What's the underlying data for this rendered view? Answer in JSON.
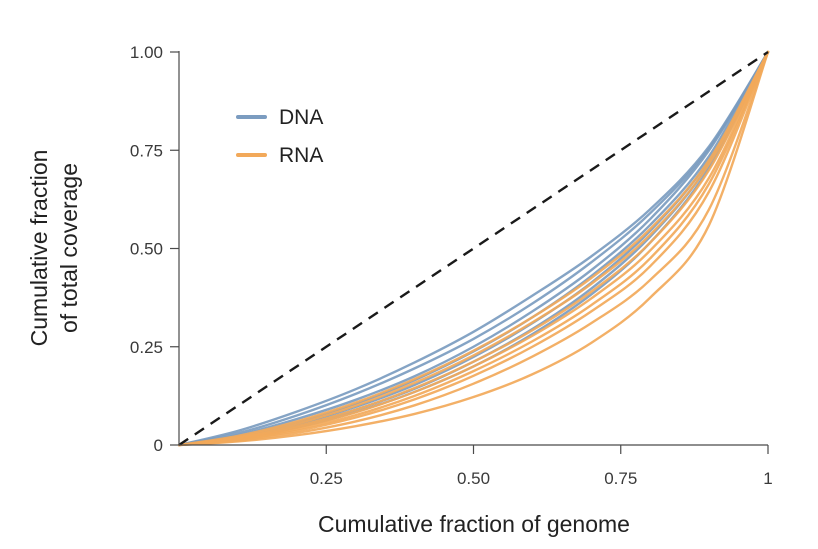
{
  "chart_data": {
    "type": "line",
    "title": "",
    "xlabel": "Cumulative fraction of genome",
    "ylabel": [
      "Cumulative fraction",
      "of total coverage"
    ],
    "xlim": [
      0,
      1
    ],
    "ylim": [
      0,
      1
    ],
    "x_ticks": [
      {
        "value": 0.25,
        "label": "0.25"
      },
      {
        "value": 0.5,
        "label": "0.50"
      },
      {
        "value": 0.75,
        "label": "0.75"
      },
      {
        "value": 1.0,
        "label": "1"
      }
    ],
    "y_ticks": [
      {
        "value": 0,
        "label": "0"
      },
      {
        "value": 0.25,
        "label": "0.25"
      },
      {
        "value": 0.5,
        "label": "0.50"
      },
      {
        "value": 0.75,
        "label": "0.75"
      },
      {
        "value": 1.0,
        "label": "1.00"
      }
    ],
    "grid": false,
    "legend_position": "top-left",
    "legend": [
      {
        "label": "DNA",
        "color": "#7b9cc0"
      },
      {
        "label": "RNA",
        "color": "#f2a95a"
      }
    ],
    "reference_line": {
      "x": [
        0,
        1
      ],
      "y": [
        0,
        1
      ],
      "style": "dashed",
      "color": "#1a1a1a"
    },
    "x": [
      0,
      0.1,
      0.2,
      0.3,
      0.4,
      0.5,
      0.6,
      0.7,
      0.8,
      0.9,
      1.0
    ],
    "series": [
      {
        "group": "DNA",
        "color": "#7b9cc0",
        "y": [
          0,
          0.036,
          0.085,
          0.142,
          0.21,
          0.288,
          0.38,
          0.48,
          0.6,
          0.76,
          1.0
        ]
      },
      {
        "group": "DNA",
        "color": "#7b9cc0",
        "y": [
          0,
          0.03,
          0.075,
          0.13,
          0.195,
          0.27,
          0.36,
          0.465,
          0.59,
          0.755,
          1.0
        ]
      },
      {
        "group": "DNA",
        "color": "#7b9cc0",
        "y": [
          0,
          0.025,
          0.066,
          0.115,
          0.175,
          0.25,
          0.34,
          0.445,
          0.575,
          0.75,
          1.0
        ]
      },
      {
        "group": "DNA",
        "color": "#7b9cc0",
        "y": [
          0,
          0.022,
          0.058,
          0.105,
          0.165,
          0.238,
          0.325,
          0.43,
          0.56,
          0.735,
          1.0
        ]
      },
      {
        "group": "DNA",
        "color": "#7b9cc0",
        "y": [
          0,
          0.02,
          0.053,
          0.097,
          0.153,
          0.224,
          0.31,
          0.413,
          0.545,
          0.725,
          1.0
        ]
      },
      {
        "group": "DNA",
        "color": "#7b9cc0",
        "y": [
          0,
          0.018,
          0.048,
          0.09,
          0.143,
          0.212,
          0.295,
          0.398,
          0.53,
          0.715,
          1.0
        ]
      },
      {
        "group": "DNA",
        "color": "#7b9cc0",
        "y": [
          0,
          0.016,
          0.044,
          0.084,
          0.135,
          0.2,
          0.282,
          0.383,
          0.515,
          0.705,
          1.0
        ]
      },
      {
        "group": "RNA",
        "color": "#f2a95a",
        "y": [
          0,
          0.023,
          0.06,
          0.108,
          0.168,
          0.24,
          0.325,
          0.425,
          0.55,
          0.725,
          1.0
        ]
      },
      {
        "group": "RNA",
        "color": "#f2a95a",
        "y": [
          0,
          0.02,
          0.054,
          0.1,
          0.158,
          0.228,
          0.312,
          0.41,
          0.535,
          0.715,
          1.0
        ]
      },
      {
        "group": "RNA",
        "color": "#f2a95a",
        "y": [
          0,
          0.018,
          0.048,
          0.09,
          0.145,
          0.212,
          0.292,
          0.39,
          0.515,
          0.7,
          1.0
        ]
      },
      {
        "group": "RNA",
        "color": "#f2a95a",
        "y": [
          0,
          0.016,
          0.044,
          0.083,
          0.135,
          0.2,
          0.278,
          0.373,
          0.495,
          0.68,
          1.0
        ]
      },
      {
        "group": "RNA",
        "color": "#f2a95a",
        "y": [
          0,
          0.014,
          0.04,
          0.076,
          0.125,
          0.188,
          0.264,
          0.356,
          0.475,
          0.665,
          1.0
        ]
      },
      {
        "group": "RNA",
        "color": "#f2a95a",
        "y": [
          0,
          0.013,
          0.036,
          0.07,
          0.116,
          0.176,
          0.25,
          0.34,
          0.455,
          0.645,
          1.0
        ]
      },
      {
        "group": "RNA",
        "color": "#f2a95a",
        "y": [
          0,
          0.011,
          0.031,
          0.06,
          0.101,
          0.156,
          0.225,
          0.31,
          0.42,
          0.6,
          1.0
        ]
      },
      {
        "group": "RNA",
        "color": "#f2a95a",
        "y": [
          0,
          0.009,
          0.025,
          0.048,
          0.079,
          0.122,
          0.18,
          0.26,
          0.375,
          0.56,
          1.0
        ]
      }
    ]
  }
}
